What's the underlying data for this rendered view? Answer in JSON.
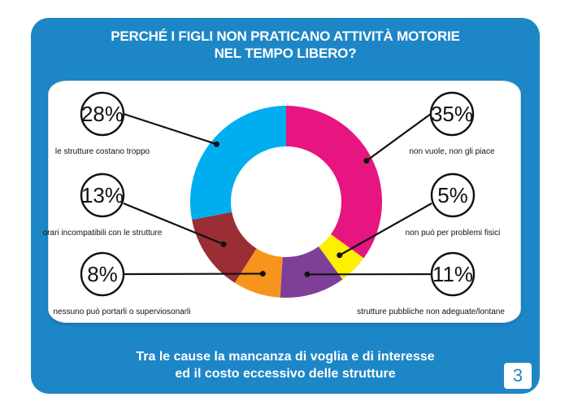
{
  "header": {
    "title_line1": "PERCHÉ I FIGLI NON PRATICANO ATTIVITÀ MOTORIE",
    "title_line2": "NEL TEMPO LIBERO?"
  },
  "footer": {
    "line1": "Tra le cause la mancanza di voglia e di interesse",
    "line2": "ed il costo eccessivo delle strutture"
  },
  "page_number": "3",
  "chart_data": {
    "type": "pie",
    "donut": true,
    "slices": [
      {
        "label": "non vuole, non gli piace",
        "value": 35,
        "display": "35%",
        "color": "#e6157f"
      },
      {
        "label": "non può per problemi fisici",
        "value": 5,
        "display": "5%",
        "color": "#ffef00"
      },
      {
        "label": "strutture pubbliche non adeguate/lontane",
        "value": 11,
        "display": "11%",
        "color": "#7e3f98"
      },
      {
        "label": "nessuno può portarli o superviosonarli",
        "value": 8,
        "display": "8%",
        "color": "#f7941d"
      },
      {
        "label": "orari incompatibili con le strutture",
        "value": 13,
        "display": "13%",
        "color": "#9b2d35"
      },
      {
        "label": "le strutture costano troppo",
        "value": 28,
        "display": "28%",
        "color": "#00aeef"
      }
    ]
  }
}
